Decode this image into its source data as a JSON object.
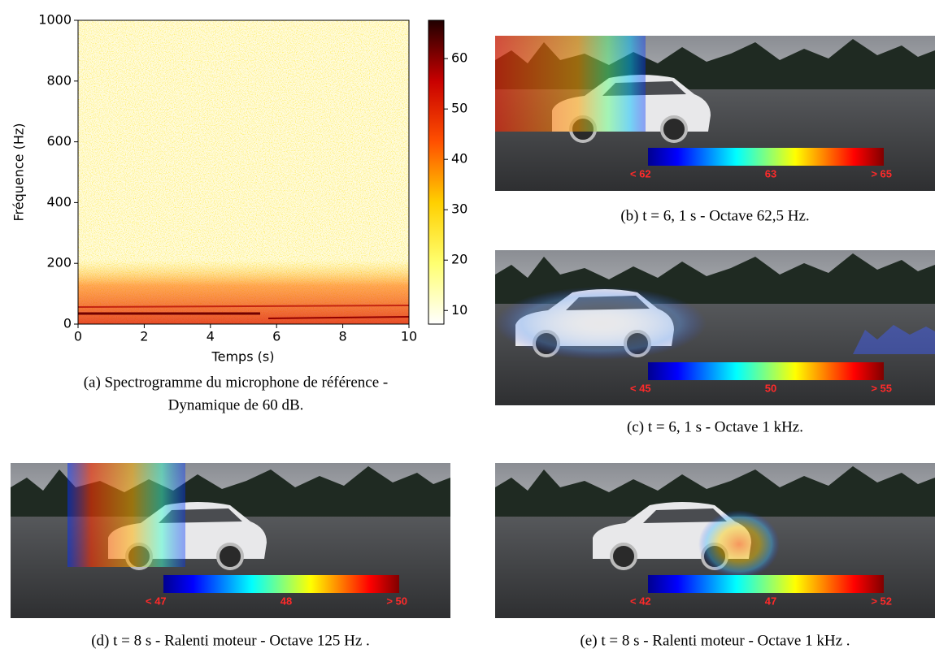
{
  "figure": {
    "spectrogram": {
      "xlabel": "Temps (s)",
      "ylabel": "Fréquence (Hz)",
      "xlim": [
        0,
        10
      ],
      "xticks": [
        0,
        2,
        4,
        6,
        8,
        10
      ],
      "ylim": [
        0,
        1000
      ],
      "yticks": [
        0,
        200,
        400,
        600,
        800,
        1000
      ],
      "colorbar": {
        "lim": [
          7.3,
          67.6
        ],
        "ticks": [
          10,
          20,
          30,
          40,
          50,
          60
        ]
      },
      "caption": [
        "(a) Spectrogramme du microphone de référence -",
        "Dynamique de 60 dB."
      ]
    },
    "panels": [
      {
        "caption": "(b) t = 6, 1 s - Octave 62,5 Hz.",
        "scale_labels": [
          "< 62",
          "63",
          "> 65"
        ]
      },
      {
        "caption": "(c) t = 6, 1 s - Octave 1 kHz.",
        "scale_labels": [
          "< 45",
          "50",
          "> 55"
        ]
      },
      {
        "caption": "(d) t = 8 s - Ralenti moteur - Octave 125 Hz .",
        "scale_labels": [
          "< 47",
          "48",
          "> 50"
        ]
      },
      {
        "caption": "(e) t = 8 s - Ralenti moteur - Octave 1 kHz .",
        "scale_labels": [
          "< 42",
          "47",
          "> 52"
        ]
      }
    ]
  }
}
